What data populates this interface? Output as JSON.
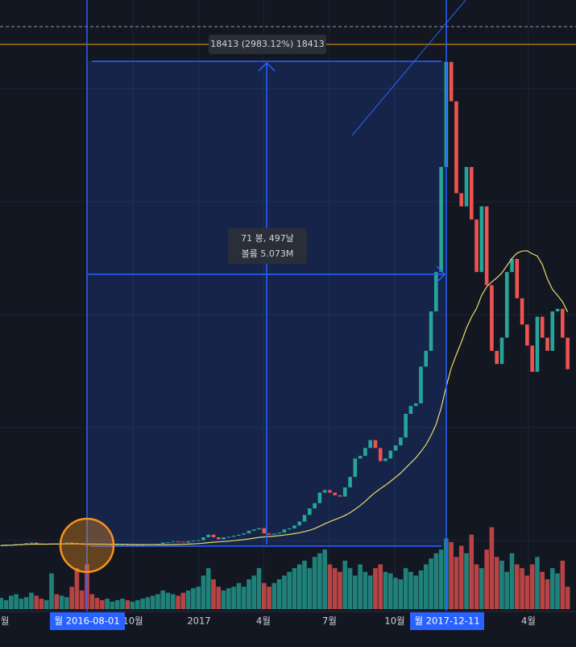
{
  "chart_data": {
    "type": "candlestick",
    "closes": [
      590,
      600,
      610,
      640,
      650,
      680,
      700,
      660,
      620,
      650,
      660,
      650,
      670,
      700,
      680,
      650,
      620,
      590,
      580,
      575,
      570,
      580,
      600,
      605,
      610,
      600,
      605,
      610,
      615,
      630,
      640,
      650,
      700,
      710,
      740,
      730,
      700,
      750,
      770,
      790,
      900,
      1000,
      900,
      820,
      900,
      920,
      960,
      1000,
      1050,
      1150,
      1200,
      1250,
      1050,
      1000,
      1040,
      1080,
      1200,
      1240,
      1350,
      1500,
      1750,
      2000,
      2200,
      2600,
      2700,
      2600,
      2500,
      2450,
      2800,
      3200,
      3900,
      4000,
      4300,
      4600,
      4300,
      3800,
      3900,
      4200,
      4400,
      4700,
      5600,
      5900,
      6000,
      7400,
      8000,
      9500,
      11000,
      15000,
      19000,
      17500,
      14000,
      13500,
      15000,
      13000,
      11000,
      13500,
      10500,
      8000,
      7500,
      8500,
      11000,
      11500,
      10000,
      9000,
      8200,
      7200,
      9300,
      8500,
      8000,
      9500,
      9600,
      8500,
      7300
    ],
    "volumes": [
      15,
      12,
      18,
      20,
      14,
      16,
      22,
      18,
      14,
      12,
      48,
      20,
      18,
      16,
      30,
      55,
      25,
      60,
      20,
      15,
      12,
      14,
      10,
      12,
      14,
      12,
      10,
      12,
      14,
      16,
      18,
      20,
      25,
      22,
      20,
      18,
      22,
      25,
      28,
      30,
      45,
      55,
      40,
      30,
      25,
      28,
      30,
      35,
      30,
      40,
      45,
      55,
      35,
      30,
      35,
      40,
      45,
      50,
      55,
      60,
      65,
      55,
      70,
      75,
      80,
      60,
      55,
      50,
      65,
      55,
      45,
      60,
      50,
      45,
      55,
      60,
      50,
      48,
      42,
      40,
      55,
      50,
      45,
      52,
      60,
      68,
      75,
      80,
      95,
      90,
      70,
      85,
      75,
      100,
      60,
      55,
      80,
      110,
      70,
      65,
      50,
      75,
      60,
      55,
      45,
      60,
      70,
      50,
      40,
      55,
      48,
      65,
      30
    ],
    "ylim": [
      -1926,
      21358
    ],
    "vlim": [
      0,
      130
    ],
    "up_color": "#26a69a",
    "down_color": "#ef5350",
    "x_labels": [
      "월",
      "10월",
      "2017",
      "4월",
      "7월",
      "10월",
      "4월"
    ],
    "range_start": "월 2016-08-01",
    "range_end": "월 2017-12-11",
    "measure_price": "18413 (2983.12%) 18413",
    "measure_bars": "71 봉, 497날",
    "measure_volume": "볼륨 5.073M"
  }
}
